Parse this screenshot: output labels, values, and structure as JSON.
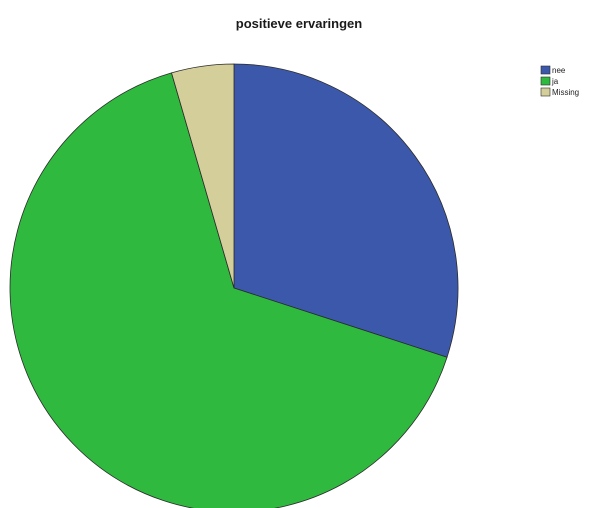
{
  "chart_data": {
    "type": "pie",
    "title": "positieve ervaringen",
    "categories": [
      "nee",
      "ja",
      "Missing"
    ],
    "values": [
      30.0,
      65.5,
      4.5
    ],
    "colors": [
      "#3c58aa",
      "#2fba3f",
      "#d4cf9a"
    ],
    "start": "top",
    "direction": "clockwise",
    "legend_position": "top-right"
  }
}
